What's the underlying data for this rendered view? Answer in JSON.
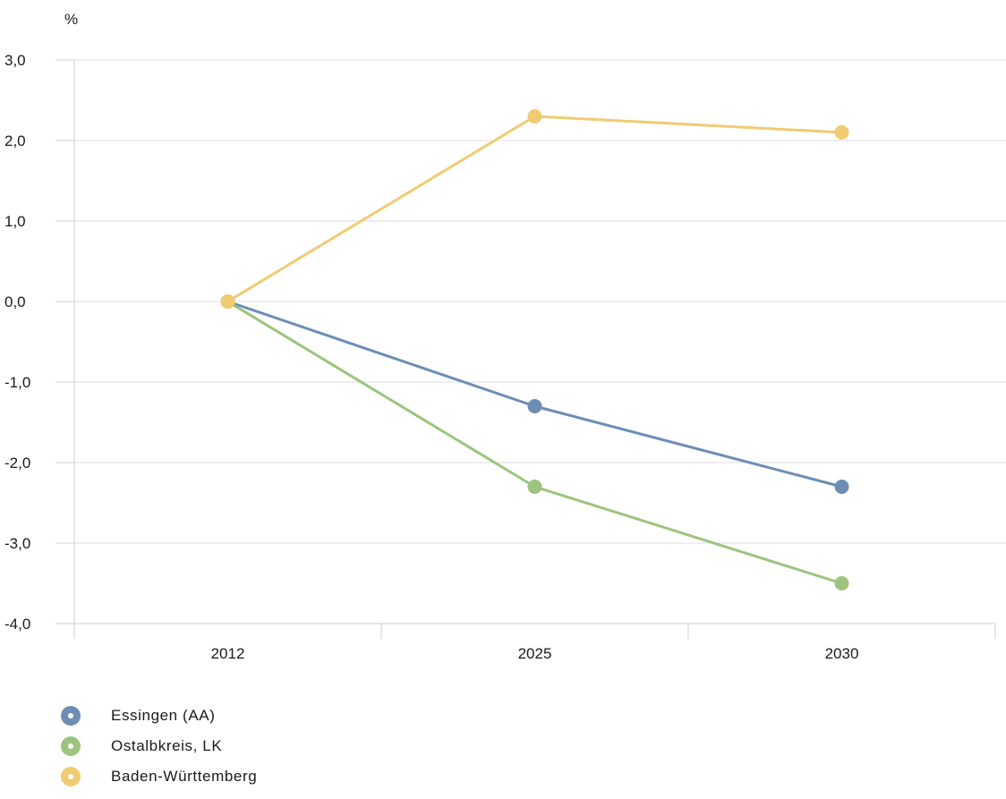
{
  "chart_data": {
    "type": "line",
    "y_unit": "%",
    "categories": [
      "2012",
      "2025",
      "2030"
    ],
    "ylim": [
      -4.0,
      3.0
    ],
    "yticks": [
      3.0,
      2.0,
      1.0,
      0.0,
      -1.0,
      -2.0,
      -3.0,
      -4.0
    ],
    "ytick_labels": [
      "3,0",
      "2,0",
      "1,0",
      "0,0",
      "-1,0",
      "-2,0",
      "-3,0",
      "-4,0"
    ],
    "grid": true,
    "legend_position": "bottom-left",
    "series": [
      {
        "name": "Essingen (AA)",
        "color": "#6d8db5",
        "values": [
          0.0,
          -1.3,
          -2.3
        ]
      },
      {
        "name": "Ostalbkreis, LK",
        "color": "#9cc47e",
        "values": [
          0.0,
          -2.3,
          -3.5
        ]
      },
      {
        "name": "Baden-Württemberg",
        "color": "#f0cb72",
        "values": [
          0.0,
          2.3,
          2.1
        ]
      }
    ]
  }
}
